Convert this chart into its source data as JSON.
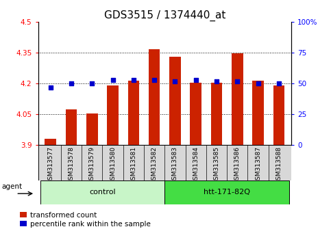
{
  "title": "GDS3515 / 1374440_at",
  "samples": [
    "GSM313577",
    "GSM313578",
    "GSM313579",
    "GSM313580",
    "GSM313581",
    "GSM313582",
    "GSM313583",
    "GSM313584",
    "GSM313585",
    "GSM313586",
    "GSM313587",
    "GSM313588"
  ],
  "red_values": [
    3.93,
    4.075,
    4.055,
    4.19,
    4.215,
    4.365,
    4.33,
    4.205,
    4.205,
    4.345,
    4.215,
    4.19
  ],
  "blue_percentiles": [
    47,
    50,
    50,
    53,
    53,
    53,
    52,
    53,
    52,
    52,
    50,
    50
  ],
  "ylim_left": [
    3.9,
    4.5
  ],
  "ylim_right": [
    0,
    100
  ],
  "yticks_left": [
    3.9,
    4.05,
    4.2,
    4.35,
    4.5
  ],
  "yticks_right": [
    0,
    25,
    50,
    75,
    100
  ],
  "ytick_labels_left": [
    "3.9",
    "4.05",
    "4.2",
    "4.35",
    "4.5"
  ],
  "ytick_labels_right": [
    "0",
    "25",
    "50",
    "75",
    "100%"
  ],
  "groups": [
    {
      "label": "control",
      "indices": [
        0,
        1,
        2,
        3,
        4,
        5
      ],
      "color": "#c8f5c8"
    },
    {
      "label": "htt-171-82Q",
      "indices": [
        6,
        7,
        8,
        9,
        10,
        11
      ],
      "color": "#44dd44"
    }
  ],
  "agent_label": "agent",
  "bar_color": "#cc2200",
  "dot_color": "#0000cc",
  "bar_bottom": 3.9,
  "label_transformed": "transformed count",
  "label_percentile": "percentile rank within the sample",
  "title_fontsize": 11,
  "tick_fontsize": 7.5,
  "sample_label_fontsize": 6.5,
  "group_label_fontsize": 8,
  "legend_fontsize": 7.5
}
